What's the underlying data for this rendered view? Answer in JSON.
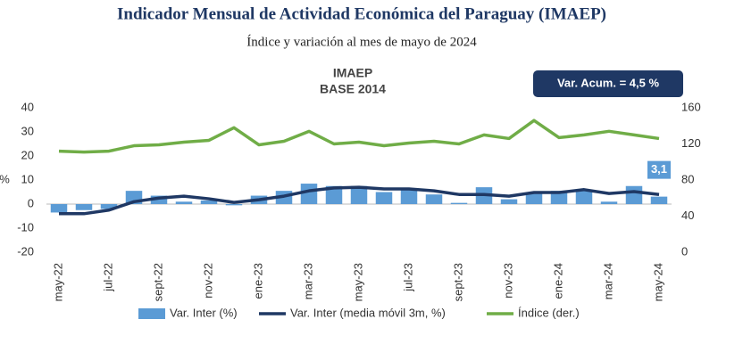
{
  "chart_data": {
    "type": "bar-line",
    "title": "Indicador Mensual de Actividad Económica del Paraguay (IMAEP)",
    "subtitle": "Índice y variación al mes de mayo de 2024",
    "chart_title": [
      "IMAEP",
      "BASE 2014"
    ],
    "annotation": "Var. Acum. =  4,5 %",
    "ylabel": "%",
    "categories": [
      "may-22",
      null,
      "jul-22",
      null,
      "sept-22",
      null,
      "nov-22",
      null,
      "ene-23",
      null,
      "mar-23",
      null,
      "may-23",
      null,
      "jul-23",
      null,
      "sept-23",
      null,
      "nov-23",
      null,
      "ene-24",
      null,
      "mar-24",
      null,
      "may-24"
    ],
    "series": [
      {
        "name": "Var. Inter (%)",
        "type": "bar",
        "axis": "y",
        "color": "#5b9bd5",
        "values": [
          -3.5,
          -2.5,
          -2,
          5.5,
          3.5,
          1,
          1.5,
          -0.5,
          3.5,
          5.5,
          8.5,
          7.5,
          7.5,
          5,
          6,
          4,
          0.5,
          7,
          2,
          4.5,
          5.5,
          5.5,
          1,
          7.5,
          3.1
        ],
        "value_labels": [
          null,
          null,
          null,
          null,
          null,
          null,
          null,
          null,
          null,
          null,
          null,
          null,
          null,
          null,
          null,
          null,
          null,
          null,
          null,
          null,
          null,
          null,
          null,
          null,
          "3,1"
        ]
      },
      {
        "name": "Var. Inter (media móvil 3m, %)",
        "type": "line",
        "axis": "y",
        "color": "#1f3864",
        "values": [
          -4,
          -4,
          -2.5,
          1,
          2.5,
          3.3,
          2.2,
          0.7,
          1.8,
          3.3,
          5.5,
          6.7,
          7,
          6.3,
          6.3,
          5.5,
          4,
          4,
          3.3,
          4.8,
          4.8,
          6,
          4.4,
          5.2,
          4
        ]
      },
      {
        "name": "Índice (der.)",
        "type": "line",
        "axis": "y2",
        "color": "#70ad47",
        "values": [
          112,
          111,
          112,
          118,
          119,
          122,
          124,
          138,
          119,
          123,
          134,
          120,
          122,
          118,
          121,
          123,
          120,
          130,
          126,
          146,
          127,
          130,
          134,
          130,
          126
        ]
      }
    ],
    "ylim": [
      -20,
      40
    ],
    "yticks": [
      -20,
      -10,
      0,
      10,
      20,
      30,
      40
    ],
    "y2lim": [
      0,
      160
    ],
    "y2ticks": [
      0,
      40,
      80,
      120,
      160
    ],
    "grid": false,
    "legend": "bottom"
  }
}
